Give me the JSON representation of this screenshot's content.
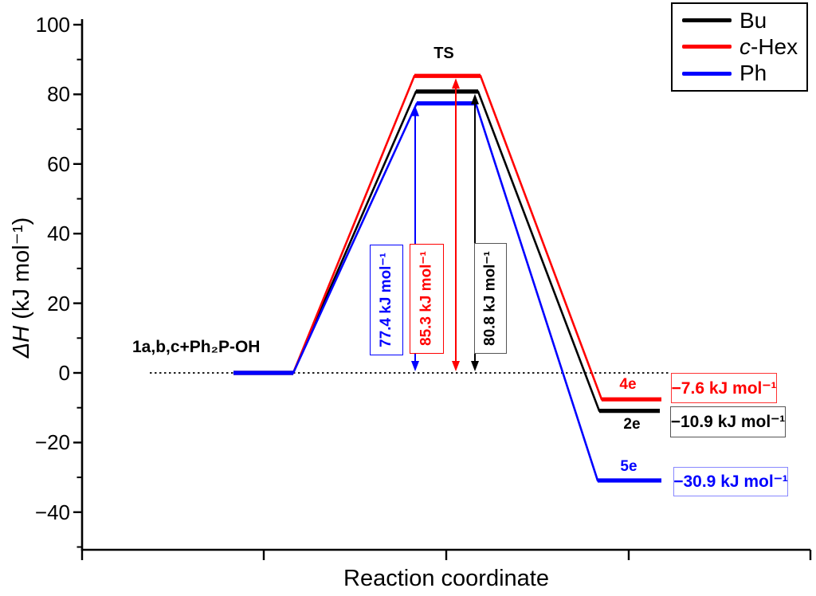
{
  "chart_data": {
    "type": "line",
    "subtype": "reaction-energy-diagram",
    "title": "",
    "xlabel": "Reaction coordinate",
    "ylabel": "ΔH (kJ mol⁻¹)",
    "ylabel_italic": "ΔH",
    "ylabel_rest": " (kJ mol⁻¹)",
    "ylim": [
      -50,
      100
    ],
    "yticks": [
      100,
      80,
      60,
      40,
      20,
      0,
      -20,
      -40
    ],
    "ytick_labels": [
      "100",
      "80",
      "60",
      "40",
      "20",
      "0",
      "−20",
      "−40"
    ],
    "x_stages": [
      "reactants",
      "transition-state",
      "products"
    ],
    "grid": false,
    "zero_line": {
      "value": 0,
      "style": "dotted",
      "color": "#000000"
    },
    "ts_label": "TS",
    "reactant_label": "1a,b,c+Ph₂P-OH",
    "reactant_value": 0,
    "series": [
      {
        "name": "Bu",
        "color": "#000000",
        "values": {
          "reactants": 0,
          "ts": 80.8,
          "products": -10.9
        },
        "barrier_kj_mol": 80.8,
        "barrier_label": "80.8 kJ mol⁻¹",
        "product_label": "2e",
        "product_value_label": "−10.9 kJ mol⁻¹",
        "value_box_border": "#555555"
      },
      {
        "name": "c-Hex",
        "color": "#ff0000",
        "values": {
          "reactants": 0,
          "ts": 85.3,
          "products": -7.6
        },
        "barrier_kj_mol": 85.3,
        "barrier_label": "85.3 kJ mol⁻¹",
        "product_label": "4e",
        "product_value_label": "−7.6 kJ mol⁻¹",
        "value_box_border": "#ff3333"
      },
      {
        "name": "Ph",
        "color": "#0000ff",
        "values": {
          "reactants": 0,
          "ts": 77.4,
          "products": -30.9
        },
        "barrier_kj_mol": 77.4,
        "barrier_label": "77.4 kJ mol⁻¹",
        "product_label": "5e",
        "product_value_label": "−30.9 kJ mol⁻¹",
        "value_box_border": "#8888ff"
      }
    ],
    "legend": {
      "position": "top-right",
      "items": [
        {
          "label_italic": "",
          "label": "Bu",
          "color": "#000000"
        },
        {
          "label_italic": "c",
          "label": "-Hex",
          "color": "#ff0000"
        },
        {
          "label_italic": "",
          "label": "Ph",
          "color": "#0000ff"
        }
      ]
    }
  }
}
